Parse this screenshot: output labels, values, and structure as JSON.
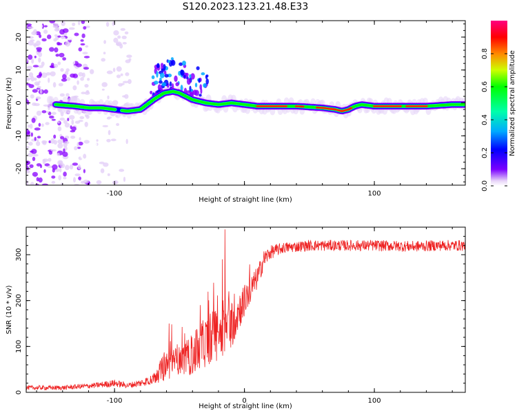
{
  "title": "S120.2023.123.21.48.E33",
  "chart_data": [
    {
      "type": "heatmap",
      "xlabel": "Height of straight line (km)",
      "ylabel": "Frequency (Hz)",
      "xlim": [
        -168,
        170
      ],
      "ylim": [
        -25,
        25
      ],
      "x_ticks": [
        -100,
        0,
        100
      ],
      "x_tick_labels": [
        "-100",
        "",
        "100"
      ],
      "y_ticks": [
        -20,
        -10,
        0,
        10,
        20
      ],
      "y_tick_labels": [
        "-20",
        "-10",
        "0",
        "10",
        "20"
      ],
      "colorbar": {
        "label": "Normalized spectral amplitude",
        "range": [
          0,
          1
        ],
        "ticks": [
          0.0,
          0.2,
          0.4,
          0.6,
          0.8
        ],
        "tick_labels": [
          "0.0",
          "0.2",
          "0.4",
          "0.6",
          "0.8"
        ],
        "colormap": "gist_rainbow"
      },
      "ridge": {
        "x": [
          -145,
          -130,
          -120,
          -110,
          -100,
          -90,
          -80,
          -75,
          -70,
          -62,
          -55,
          -50,
          -45,
          -40,
          -30,
          -20,
          -10,
          0,
          10,
          20,
          40,
          60,
          70,
          75,
          80,
          85,
          90,
          100,
          120,
          140,
          160,
          170
        ],
        "y": [
          -0.5,
          -1,
          -1.5,
          -1.5,
          -2,
          -2.5,
          -2,
          -0.5,
          1,
          3,
          3.5,
          3,
          2,
          1,
          0,
          -0.5,
          0,
          -0.5,
          -1,
          -1,
          -1,
          -1.5,
          -2,
          -2.5,
          -2,
          -1,
          -0.5,
          -1,
          -1,
          -1,
          -0.5,
          -0.5
        ]
      }
    },
    {
      "type": "line",
      "xlabel": "Height of straight line (km)",
      "ylabel": "SNR (10 * v/v)",
      "xlim": [
        -168,
        170
      ],
      "ylim": [
        0,
        360
      ],
      "x_ticks": [
        -100,
        0,
        100
      ],
      "x_tick_labels": [
        "-100",
        "0",
        "100"
      ],
      "y_ticks": [
        0,
        100,
        200,
        300
      ],
      "y_tick_labels": [
        "0",
        "100",
        "200",
        "300"
      ],
      "series": [
        {
          "color": "#ee2222",
          "trend_x": [
            -168,
            -140,
            -115,
            -100,
            -90,
            -80,
            -70,
            -60,
            -50,
            -40,
            -30,
            -20,
            -10,
            0,
            10,
            15,
            20,
            30,
            50,
            80,
            100,
            130,
            150,
            170
          ],
          "trend_y": [
            10,
            10,
            15,
            20,
            15,
            20,
            30,
            60,
            70,
            80,
            110,
            130,
            150,
            200,
            250,
            290,
            305,
            315,
            320,
            320,
            320,
            318,
            320,
            320
          ],
          "noise": [
            5,
            5,
            6,
            8,
            6,
            8,
            12,
            35,
            30,
            45,
            55,
            60,
            55,
            35,
            25,
            20,
            15,
            12,
            12,
            12,
            12,
            12,
            12,
            12
          ],
          "spikes": [
            {
              "x": -58,
              "y": 150
            },
            {
              "x": -56,
              "y": 148
            },
            {
              "x": -34,
              "y": 190
            },
            {
              "x": -33,
              "y": 150
            },
            {
              "x": -24,
              "y": 160
            },
            {
              "x": -15,
              "y": 355
            },
            {
              "x": -17,
              "y": 290
            },
            {
              "x": -12,
              "y": 220
            }
          ]
        }
      ]
    }
  ]
}
